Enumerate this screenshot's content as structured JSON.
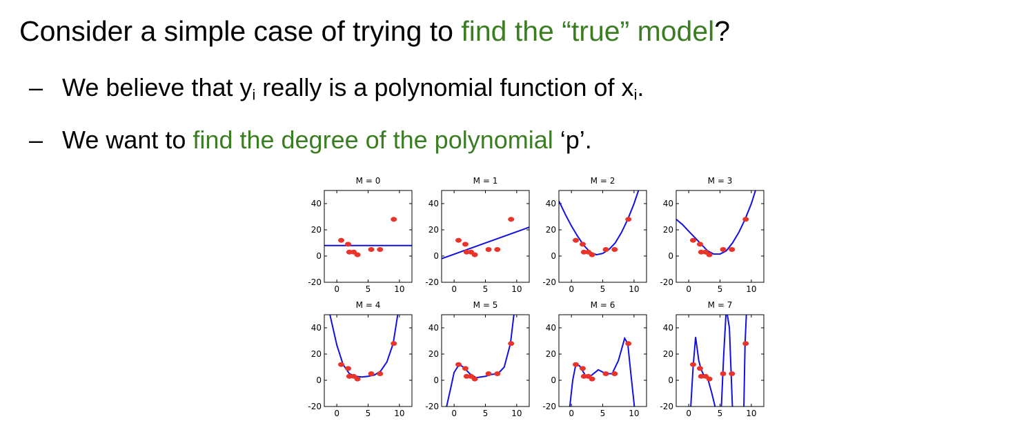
{
  "slide": {
    "title": {
      "segments": [
        {
          "text": "Consider a simple case of trying to ",
          "color": "#000000"
        },
        {
          "text": "find the “true” model",
          "color": "#3b7d23"
        },
        {
          "text": "?",
          "color": "#000000"
        }
      ]
    },
    "bullets": [
      {
        "marker": "–",
        "segments": [
          {
            "text": "We believe that y",
            "color": "#000000"
          },
          {
            "text": "i",
            "color": "#000000",
            "sub": true
          },
          {
            "text": " really is a polynomial function of x",
            "color": "#000000"
          },
          {
            "text": "i",
            "color": "#000000",
            "sub": true
          },
          {
            "text": ".",
            "color": "#000000"
          }
        ]
      },
      {
        "marker": "–",
        "segments": [
          {
            "text": "We want to ",
            "color": "#000000"
          },
          {
            "text": "find the degree of the polynomial",
            "color": "#3b7d23"
          },
          {
            "text": " ‘p’.",
            "color": "#000000"
          }
        ]
      }
    ]
  },
  "chart_data": [
    {
      "type": "fit",
      "title": "M = 0",
      "xlim": [
        -2,
        12
      ],
      "ylim": [
        -20,
        50
      ],
      "xticks": [
        0,
        5,
        10
      ],
      "yticks": [
        -20,
        0,
        20,
        40
      ],
      "points": {
        "color": "#e8342a",
        "x": [
          0.7,
          1.8,
          2,
          2.7,
          3.3,
          5.5,
          6.9,
          9.1
        ],
        "y": [
          12,
          9,
          3,
          3,
          1,
          5,
          5,
          28
        ]
      },
      "curve": {
        "color": "#1010e0",
        "x": [
          -2,
          12
        ],
        "y": [
          8,
          8
        ]
      }
    },
    {
      "type": "fit",
      "title": "M = 1",
      "xlim": [
        -2,
        12
      ],
      "ylim": [
        -20,
        50
      ],
      "xticks": [
        0,
        5,
        10
      ],
      "yticks": [
        -20,
        0,
        20,
        40
      ],
      "points": {
        "color": "#e8342a",
        "x": [
          0.7,
          1.8,
          2,
          2.7,
          3.3,
          5.5,
          6.9,
          9.1
        ],
        "y": [
          12,
          9,
          3,
          3,
          1,
          5,
          5,
          28
        ]
      },
      "curve": {
        "color": "#1010e0",
        "x": [
          -2,
          12
        ],
        "y": [
          -2,
          22
        ]
      }
    },
    {
      "type": "fit",
      "title": "M = 2",
      "xlim": [
        -2,
        12
      ],
      "ylim": [
        -20,
        50
      ],
      "xticks": [
        0,
        5,
        10
      ],
      "yticks": [
        -20,
        0,
        20,
        40
      ],
      "points": {
        "color": "#e8342a",
        "x": [
          0.7,
          1.8,
          2,
          2.7,
          3.3,
          5.5,
          6.9,
          9.1
        ],
        "y": [
          12,
          9,
          3,
          3,
          1,
          5,
          5,
          28
        ]
      },
      "curve": {
        "color": "#1010e0",
        "x": [
          -2,
          -1,
          0,
          1,
          2,
          3,
          4,
          5,
          6,
          7,
          8,
          9,
          10,
          11
        ],
        "y": [
          42,
          32,
          23,
          15,
          8,
          3,
          1,
          2,
          5,
          10,
          18,
          28,
          40,
          54
        ]
      }
    },
    {
      "type": "fit",
      "title": "M = 3",
      "xlim": [
        -2,
        12
      ],
      "ylim": [
        -20,
        50
      ],
      "xticks": [
        0,
        5,
        10
      ],
      "yticks": [
        -20,
        0,
        20,
        40
      ],
      "points": {
        "color": "#e8342a",
        "x": [
          0.7,
          1.8,
          2,
          2.7,
          3.3,
          5.5,
          6.9,
          9.1
        ],
        "y": [
          12,
          9,
          3,
          3,
          1,
          5,
          5,
          28
        ]
      },
      "curve": {
        "color": "#1010e0",
        "x": [
          -2,
          -1,
          0,
          1,
          2,
          3,
          4,
          5,
          6,
          7,
          8,
          9,
          10,
          11
        ],
        "y": [
          28,
          24,
          19,
          14,
          9,
          4,
          1.5,
          1.5,
          4,
          10,
          18,
          28,
          40,
          55
        ]
      }
    },
    {
      "type": "fit",
      "title": "M = 4",
      "xlim": [
        -2,
        12
      ],
      "ylim": [
        -20,
        50
      ],
      "xticks": [
        0,
        5,
        10
      ],
      "yticks": [
        -20,
        0,
        20,
        40
      ],
      "points": {
        "color": "#e8342a",
        "x": [
          0.7,
          1.8,
          2,
          2.7,
          3.3,
          5.5,
          6.9,
          9.1
        ],
        "y": [
          12,
          9,
          3,
          3,
          1,
          5,
          5,
          28
        ]
      },
      "curve": {
        "color": "#1010e0",
        "x": [
          -1.2,
          0,
          1,
          2,
          3,
          4,
          5,
          6,
          7,
          8,
          9,
          9.8
        ],
        "y": [
          52,
          27,
          12,
          5,
          3,
          2.5,
          3,
          4,
          7,
          14,
          28,
          52
        ]
      }
    },
    {
      "type": "fit",
      "title": "M = 5",
      "xlim": [
        -2,
        12
      ],
      "ylim": [
        -20,
        50
      ],
      "xticks": [
        0,
        5,
        10
      ],
      "yticks": [
        -20,
        0,
        20,
        40
      ],
      "points": {
        "color": "#e8342a",
        "x": [
          0.7,
          1.8,
          2,
          2.7,
          3.3,
          5.5,
          6.9,
          9.1
        ],
        "y": [
          12,
          9,
          3,
          3,
          1,
          5,
          5,
          28
        ]
      },
      "curve": {
        "color": "#1010e0",
        "x": [
          -1.3,
          -0.5,
          0,
          0.8,
          1.5,
          2.5,
          3.5,
          5,
          6,
          7,
          8,
          9,
          9.6
        ],
        "y": [
          -22,
          -5,
          6,
          12,
          10,
          5,
          2,
          3,
          4.5,
          5,
          10,
          28,
          52
        ]
      }
    },
    {
      "type": "fit",
      "title": "M = 6",
      "xlim": [
        -2,
        12
      ],
      "ylim": [
        -20,
        50
      ],
      "xticks": [
        0,
        5,
        10
      ],
      "yticks": [
        -20,
        0,
        20,
        40
      ],
      "points": {
        "color": "#e8342a",
        "x": [
          0.7,
          1.8,
          2,
          2.7,
          3.3,
          5.5,
          6.9,
          9.1
        ],
        "y": [
          12,
          9,
          3,
          3,
          1,
          5,
          5,
          28
        ]
      },
      "curve": {
        "color": "#1010e0",
        "x": [
          -0.3,
          0.2,
          0.7,
          1.3,
          2.2,
          3,
          4.3,
          5.5,
          6.5,
          7.5,
          8.5,
          9,
          9.5,
          10.1
        ],
        "y": [
          -22,
          0,
          12,
          11,
          4,
          3,
          8,
          5,
          5,
          15,
          32,
          28,
          5,
          -22
        ]
      }
    },
    {
      "type": "fit",
      "title": "M = 7",
      "xlim": [
        -2,
        12
      ],
      "ylim": [
        -20,
        50
      ],
      "xticks": [
        0,
        5,
        10
      ],
      "yticks": [
        -20,
        0,
        20,
        40
      ],
      "points": {
        "color": "#e8342a",
        "x": [
          0.7,
          1.8,
          2,
          2.7,
          3.3,
          5.5,
          6.9,
          9.1
        ],
        "y": [
          12,
          9,
          3,
          3,
          1,
          5,
          5,
          28
        ]
      },
      "curve": {
        "color": "#1010e0",
        "x": [
          0.3,
          0.7,
          1.1,
          1.6,
          2,
          2.5,
          3,
          3.7,
          4.3,
          5.2,
          5.6,
          6,
          6.5,
          7,
          8.8,
          9,
          9.3
        ],
        "y": [
          -22,
          10,
          33,
          15,
          8,
          3,
          2,
          -10,
          -22,
          -22,
          20,
          55,
          40,
          -22,
          -22,
          28,
          60
        ]
      }
    }
  ]
}
